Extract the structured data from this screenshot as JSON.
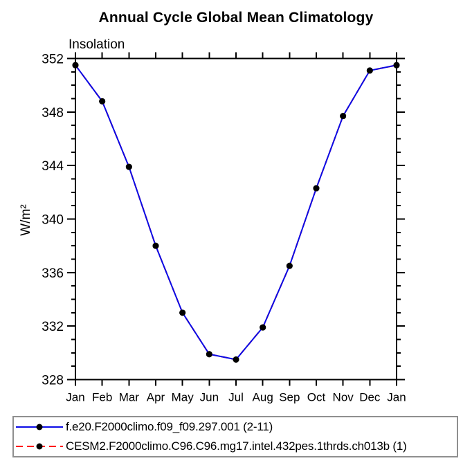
{
  "title": "Annual Cycle Global Mean Climatology",
  "subtitle": "Insolation",
  "ylabel": "W/m²",
  "legend": {
    "entries": [
      {
        "label": "f.e20.F2000climo.f09_f09.297.001 (2-11)",
        "color": "#0a0ae6",
        "line_style": "solid",
        "marker": "filled-circle",
        "marker_color": "#000000"
      },
      {
        "label": "CESM2.F2000climo.C96.C96.mg17.intel.432pes.1thrds.ch013b (1)",
        "color": "#ff0000",
        "line_style": "dashed",
        "marker": "filled-circle",
        "marker_color": "#000000"
      }
    ]
  },
  "chart_data": {
    "type": "line",
    "title": "Annual Cycle Global Mean Climatology",
    "subtitle": "Insolation",
    "ylabel": "W/m²",
    "categories": [
      "Jan",
      "Feb",
      "Mar",
      "Apr",
      "May",
      "Jun",
      "Jul",
      "Aug",
      "Sep",
      "Oct",
      "Nov",
      "Dec",
      "Jan"
    ],
    "series": [
      {
        "name": "f.e20.F2000climo.f09_f09.297.001 (2-11)",
        "color": "#0a0ae6",
        "line_style": "solid",
        "marker": "filled-circle",
        "marker_color": "#000000",
        "values": [
          351.5,
          348.8,
          343.9,
          338.0,
          333.0,
          329.9,
          329.5,
          331.9,
          336.5,
          342.3,
          347.7,
          351.1,
          351.5
        ]
      },
      {
        "name": "CESM2.F2000climo.C96.C96.mg17.intel.432pes.1thrds.ch013b (1)",
        "color": "#ff0000",
        "line_style": "dashed",
        "marker": "filled-circle",
        "marker_color": "#000000",
        "values": [
          351.5,
          348.8,
          343.9,
          338.0,
          333.0,
          329.9,
          329.5,
          331.9,
          336.5,
          342.3,
          347.7,
          351.1,
          351.5
        ],
        "note": "coincident with first series, hidden beneath it"
      }
    ],
    "ylim": [
      328,
      352
    ],
    "ytick_major_interval": 4,
    "ytick_minor_interval": 1,
    "grid": false,
    "legend_position": "bottom-left-box"
  }
}
